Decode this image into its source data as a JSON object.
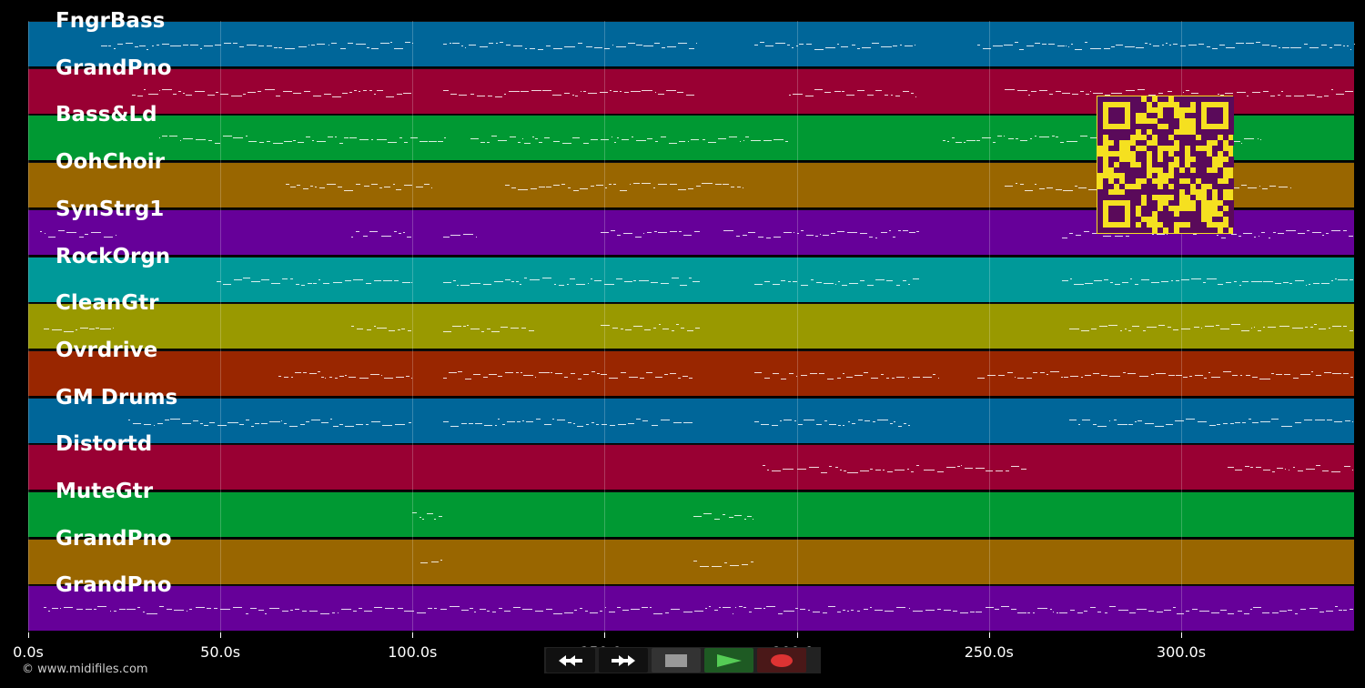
{
  "axis": {
    "ticks": [
      {
        "value": 0,
        "label": "0.0s"
      },
      {
        "value": 50,
        "label": "50.0s"
      },
      {
        "value": 100,
        "label": "100.0s"
      },
      {
        "value": 150,
        "label": "150.0s"
      },
      {
        "value": 200,
        "label": "200.0s"
      },
      {
        "value": 250,
        "label": "250.0s"
      },
      {
        "value": 300,
        "label": "300.0s"
      }
    ],
    "max_seconds": 345
  },
  "copyright": "© www.midifiles.com",
  "tracks": [
    {
      "name": "FngrBass",
      "color": "#006699",
      "ranges": [
        [
          19,
          100
        ],
        [
          108,
          174
        ],
        [
          189,
          231
        ],
        [
          247,
          345
        ]
      ]
    },
    {
      "name": "GrandPno",
      "color": "#990033",
      "ranges": [
        [
          27,
          100
        ],
        [
          108,
          174
        ],
        [
          198,
          231
        ],
        [
          254,
          345
        ]
      ]
    },
    {
      "name": "Bass&Ld",
      "color": "#009933",
      "ranges": [
        [
          34,
          109
        ],
        [
          115,
          198
        ],
        [
          238,
          321
        ]
      ]
    },
    {
      "name": "OohChoir",
      "color": "#996600",
      "ranges": [
        [
          67,
          105
        ],
        [
          124,
          186
        ],
        [
          254,
          329
        ]
      ]
    },
    {
      "name": "SynStrg1",
      "color": "#660099",
      "ranges": [
        [
          3,
          23
        ],
        [
          84,
          100
        ],
        [
          108,
          117
        ],
        [
          149,
          175
        ],
        [
          181,
          232
        ],
        [
          269,
          345
        ]
      ]
    },
    {
      "name": "RockOrgn",
      "color": "#009999",
      "ranges": [
        [
          49,
          100
        ],
        [
          108,
          175
        ],
        [
          189,
          232
        ],
        [
          269,
          345
        ]
      ]
    },
    {
      "name": "CleanGtr",
      "color": "#999900",
      "ranges": [
        [
          4,
          22
        ],
        [
          84,
          100
        ],
        [
          108,
          132
        ],
        [
          149,
          175
        ],
        [
          271,
          345
        ]
      ]
    },
    {
      "name": "Ovrdrive",
      "color": "#992600",
      "ranges": [
        [
          65,
          100
        ],
        [
          108,
          173
        ],
        [
          189,
          237
        ],
        [
          247,
          345
        ]
      ]
    },
    {
      "name": "GM Drums",
      "color": "#006699",
      "ranges": [
        [
          26,
          100
        ],
        [
          108,
          173
        ],
        [
          189,
          230
        ],
        [
          271,
          345
        ]
      ]
    },
    {
      "name": "Distortd",
      "color": "#990033",
      "ranges": [
        [
          191,
          232
        ],
        [
          233,
          260
        ],
        [
          312,
          345
        ]
      ]
    },
    {
      "name": "MuteGtr",
      "color": "#009933",
      "ranges": [
        [
          100,
          108
        ],
        [
          173,
          189
        ]
      ]
    },
    {
      "name": "GrandPno",
      "color": "#996600",
      "ranges": [
        [
          102,
          108
        ],
        [
          173,
          189
        ]
      ]
    },
    {
      "name": "GrandPno",
      "color": "#660099",
      "ranges": [
        [
          4,
          345
        ]
      ]
    }
  ],
  "controls": {
    "rewind": "rewind-icon",
    "fast_forward": "fast-forward-icon",
    "stop": "stop-icon",
    "play": "play-icon",
    "record": "record-icon"
  }
}
